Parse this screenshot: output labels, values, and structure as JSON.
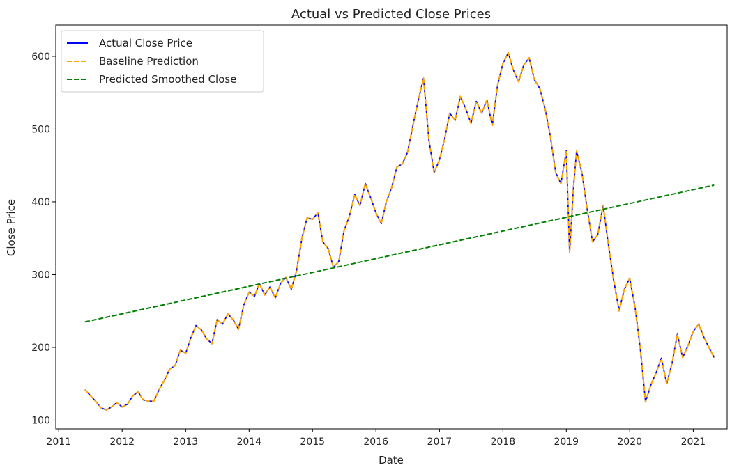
{
  "chart_data": {
    "type": "line",
    "title": "Actual vs Predicted Close Prices",
    "xlabel": "Date",
    "ylabel": "Close Price",
    "xlim": [
      "2010-12-15",
      "2021-07-15"
    ],
    "ylim": [
      88,
      643
    ],
    "x_ticks": [
      "2011",
      "2012",
      "2013",
      "2014",
      "2015",
      "2016",
      "2017",
      "2018",
      "2019",
      "2020",
      "2021"
    ],
    "y_ticks": [
      100,
      200,
      300,
      400,
      500,
      600
    ],
    "legend_position": "upper-left",
    "series": [
      {
        "name": "Actual Close Price",
        "color": "#0000ff",
        "style": "solid",
        "points": [
          [
            "2011-06-01",
            142
          ],
          [
            "2011-07-01",
            134
          ],
          [
            "2011-08-01",
            126
          ],
          [
            "2011-09-01",
            117
          ],
          [
            "2011-10-01",
            114
          ],
          [
            "2011-11-01",
            118
          ],
          [
            "2011-12-01",
            124
          ],
          [
            "2012-01-01",
            118
          ],
          [
            "2012-02-01",
            122
          ],
          [
            "2012-03-01",
            133
          ],
          [
            "2012-04-01",
            139
          ],
          [
            "2012-05-01",
            128
          ],
          [
            "2012-06-01",
            126
          ],
          [
            "2012-07-01",
            126
          ],
          [
            "2012-08-01",
            142
          ],
          [
            "2012-09-01",
            155
          ],
          [
            "2012-10-01",
            170
          ],
          [
            "2012-11-01",
            175
          ],
          [
            "2012-12-01",
            196
          ],
          [
            "2013-01-01",
            192
          ],
          [
            "2013-02-01",
            214
          ],
          [
            "2013-03-01",
            230
          ],
          [
            "2013-04-01",
            224
          ],
          [
            "2013-05-01",
            212
          ],
          [
            "2013-06-01",
            205
          ],
          [
            "2013-07-01",
            238
          ],
          [
            "2013-08-01",
            232
          ],
          [
            "2013-09-01",
            246
          ],
          [
            "2013-10-01",
            238
          ],
          [
            "2013-11-01",
            225
          ],
          [
            "2013-12-01",
            258
          ],
          [
            "2014-01-01",
            276
          ],
          [
            "2014-02-01",
            270
          ],
          [
            "2014-03-01",
            288
          ],
          [
            "2014-04-01",
            272
          ],
          [
            "2014-05-01",
            283
          ],
          [
            "2014-06-01",
            268
          ],
          [
            "2014-07-01",
            288
          ],
          [
            "2014-08-01",
            296
          ],
          [
            "2014-09-01",
            280
          ],
          [
            "2014-10-01",
            305
          ],
          [
            "2014-11-01",
            350
          ],
          [
            "2014-12-01",
            378
          ],
          [
            "2015-01-01",
            376
          ],
          [
            "2015-02-01",
            385
          ],
          [
            "2015-03-01",
            345
          ],
          [
            "2015-04-01",
            336
          ],
          [
            "2015-05-01",
            310
          ],
          [
            "2015-06-01",
            318
          ],
          [
            "2015-07-01",
            360
          ],
          [
            "2015-08-01",
            380
          ],
          [
            "2015-09-01",
            410
          ],
          [
            "2015-10-01",
            395
          ],
          [
            "2015-11-01",
            425
          ],
          [
            "2015-12-01",
            406
          ],
          [
            "2016-01-01",
            385
          ],
          [
            "2016-02-01",
            370
          ],
          [
            "2016-03-01",
            400
          ],
          [
            "2016-04-01",
            420
          ],
          [
            "2016-05-01",
            448
          ],
          [
            "2016-06-01",
            452
          ],
          [
            "2016-07-01",
            468
          ],
          [
            "2016-08-01",
            505
          ],
          [
            "2016-09-01",
            540
          ],
          [
            "2016-10-01",
            570
          ],
          [
            "2016-11-01",
            485
          ],
          [
            "2016-12-01",
            440
          ],
          [
            "2017-01-01",
            458
          ],
          [
            "2017-02-01",
            488
          ],
          [
            "2017-03-01",
            522
          ],
          [
            "2017-04-01",
            512
          ],
          [
            "2017-05-01",
            545
          ],
          [
            "2017-06-01",
            528
          ],
          [
            "2017-07-01",
            508
          ],
          [
            "2017-08-01",
            538
          ],
          [
            "2017-09-01",
            522
          ],
          [
            "2017-10-01",
            540
          ],
          [
            "2017-11-01",
            505
          ],
          [
            "2017-12-01",
            560
          ],
          [
            "2018-01-01",
            590
          ],
          [
            "2018-02-01",
            605
          ],
          [
            "2018-03-01",
            582
          ],
          [
            "2018-04-01",
            565
          ],
          [
            "2018-05-01",
            588
          ],
          [
            "2018-06-01",
            598
          ],
          [
            "2018-07-01",
            568
          ],
          [
            "2018-08-01",
            556
          ],
          [
            "2018-09-01",
            528
          ],
          [
            "2018-10-01",
            490
          ],
          [
            "2018-11-01",
            440
          ],
          [
            "2018-12-01",
            425
          ],
          [
            "2019-01-01",
            470
          ],
          [
            "2019-01-20",
            330
          ],
          [
            "2019-02-10",
            415
          ],
          [
            "2019-03-01",
            470
          ],
          [
            "2019-04-01",
            440
          ],
          [
            "2019-05-01",
            390
          ],
          [
            "2019-06-01",
            345
          ],
          [
            "2019-07-01",
            355
          ],
          [
            "2019-08-01",
            395
          ],
          [
            "2019-09-01",
            340
          ],
          [
            "2019-10-01",
            292
          ],
          [
            "2019-11-01",
            250
          ],
          [
            "2019-12-01",
            280
          ],
          [
            "2020-01-01",
            295
          ],
          [
            "2020-02-01",
            255
          ],
          [
            "2020-03-01",
            200
          ],
          [
            "2020-04-01",
            125
          ],
          [
            "2020-05-01",
            148
          ],
          [
            "2020-06-01",
            165
          ],
          [
            "2020-07-01",
            185
          ],
          [
            "2020-08-01",
            150
          ],
          [
            "2020-09-01",
            178
          ],
          [
            "2020-10-01",
            218
          ],
          [
            "2020-11-01",
            186
          ],
          [
            "2020-12-01",
            202
          ],
          [
            "2021-01-01",
            222
          ],
          [
            "2021-02-01",
            232
          ],
          [
            "2021-03-01",
            215
          ],
          [
            "2021-04-01",
            200
          ],
          [
            "2021-05-01",
            186
          ]
        ]
      },
      {
        "name": "Baseline Prediction",
        "color": "#ffa500",
        "style": "dashed",
        "same_as": "Actual Close Price"
      },
      {
        "name": "Predicted Smoothed Close",
        "color": "#008000",
        "style": "dashed",
        "points": [
          [
            "2011-06-01",
            235
          ],
          [
            "2021-05-01",
            423
          ]
        ]
      }
    ]
  }
}
